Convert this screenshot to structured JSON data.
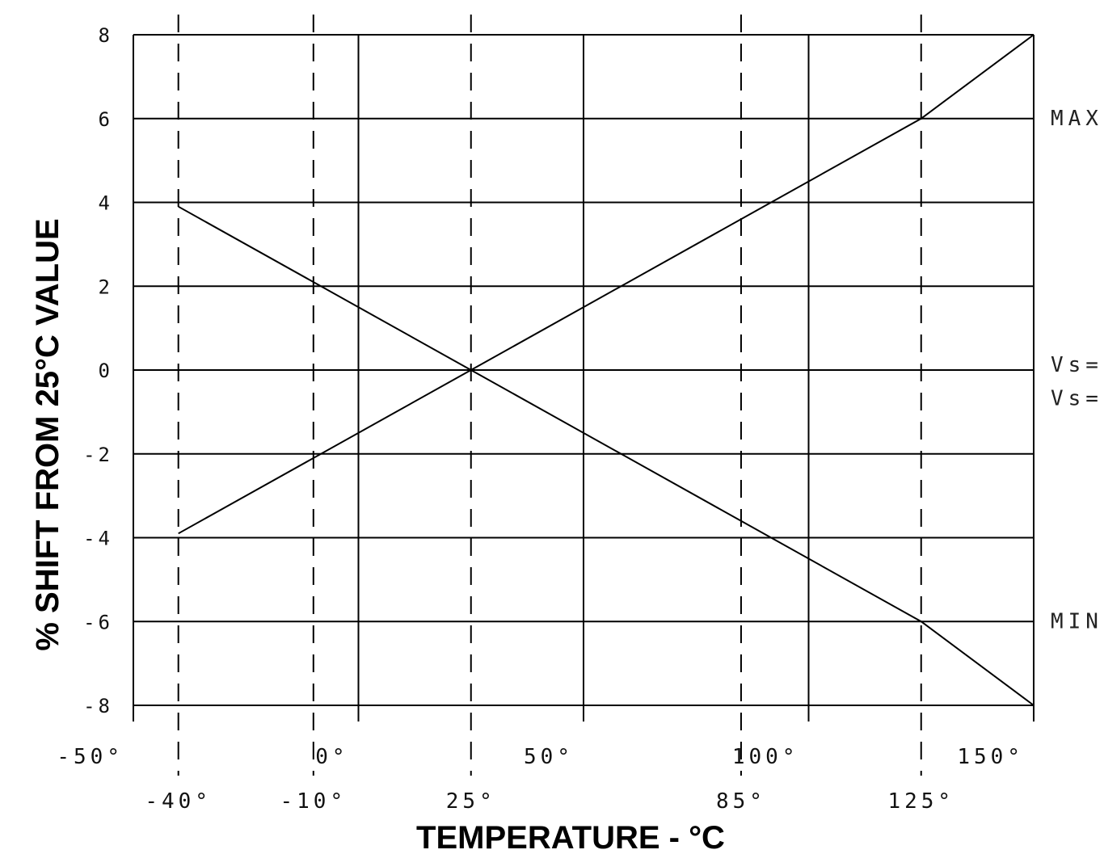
{
  "chart_data": {
    "type": "line",
    "xlabel": "TEMPERATURE - °C",
    "ylabel": "% SHIFT FROM 25°C VALUE",
    "xlim": [
      -50,
      150
    ],
    "ylim": [
      -8,
      8
    ],
    "x_ticks_major": [
      {
        "value": -50,
        "label": "-50°"
      },
      {
        "value": 0,
        "label": "0°"
      },
      {
        "value": 50,
        "label": "50°"
      },
      {
        "value": 100,
        "label": "100°"
      },
      {
        "value": 150,
        "label": "150°"
      }
    ],
    "x_ticks_dashed": [
      {
        "value": -40,
        "label": "-40°"
      },
      {
        "value": -10,
        "label": "-10°"
      },
      {
        "value": 25,
        "label": "25°"
      },
      {
        "value": 85,
        "label": "85°"
      },
      {
        "value": 125,
        "label": "125°"
      }
    ],
    "y_ticks": [
      {
        "value": 8,
        "label": "8"
      },
      {
        "value": 6,
        "label": "6"
      },
      {
        "value": 4,
        "label": "4"
      },
      {
        "value": 2,
        "label": "2"
      },
      {
        "value": 0,
        "label": "0"
      },
      {
        "value": -2,
        "label": "-2"
      },
      {
        "value": -4,
        "label": "-4"
      },
      {
        "value": -6,
        "label": "-6"
      },
      {
        "value": -8,
        "label": "-8"
      }
    ],
    "grid": true,
    "series": [
      {
        "name": "MAX",
        "x": [
          -40,
          25,
          125,
          150
        ],
        "y": [
          -3.9,
          0,
          6,
          8
        ]
      },
      {
        "name": "MIN",
        "x": [
          -40,
          25,
          125,
          150
        ],
        "y": [
          3.9,
          0,
          -6,
          -8
        ]
      }
    ],
    "annotations": [
      {
        "text": "Vs=",
        "anchor_y": 0
      },
      {
        "text": "Vs=",
        "anchor_y": -0.8
      }
    ]
  }
}
